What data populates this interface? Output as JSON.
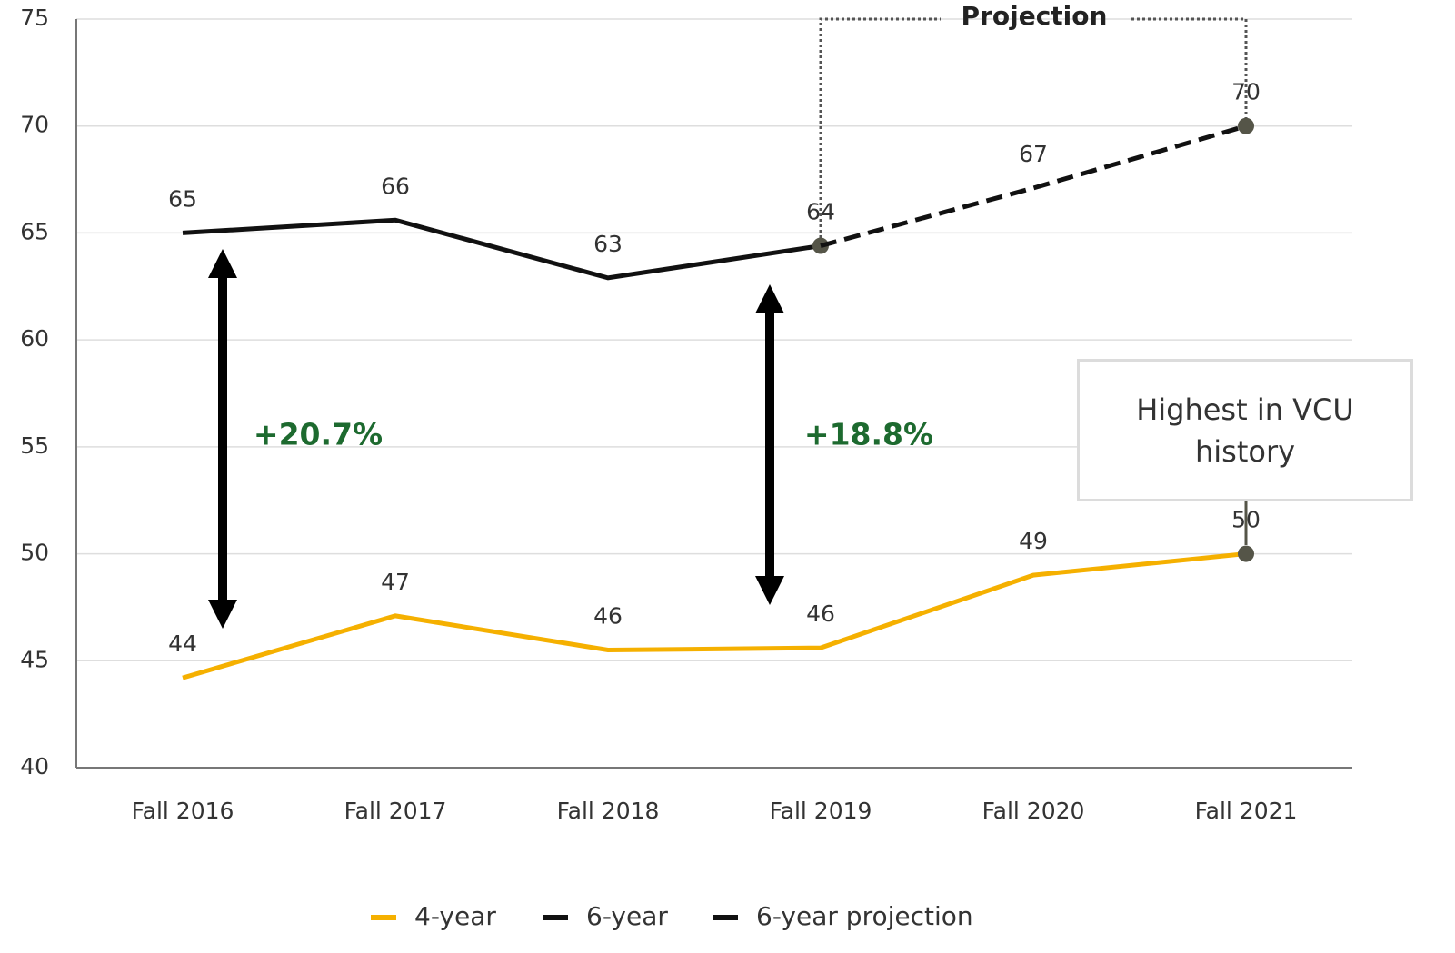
{
  "chart_data": {
    "type": "line",
    "categories": [
      "Fall 2016",
      "Fall 2017",
      "Fall 2018",
      "Fall 2019",
      "Fall 2020",
      "Fall 2021"
    ],
    "series": [
      {
        "name": "4-year",
        "color": "#f5b000",
        "style": "solid",
        "values": [
          44.2,
          47.1,
          45.5,
          45.6,
          49.0,
          50.0
        ],
        "value_labels": [
          "44",
          "47",
          "46",
          "46",
          "49",
          "50"
        ],
        "markers": [
          5
        ]
      },
      {
        "name": "6-year",
        "color": "#111111",
        "style": "solid",
        "values": [
          65.0,
          65.6,
          62.9,
          64.4,
          null,
          null
        ],
        "value_labels": [
          "65",
          "66",
          "63",
          "64",
          null,
          null
        ],
        "markers": [
          3
        ]
      },
      {
        "name": "6-year projection",
        "color": "#111111",
        "style": "dashed",
        "values": [
          null,
          null,
          null,
          64.4,
          67.1,
          70.0
        ],
        "value_labels": [
          null,
          null,
          null,
          null,
          "67",
          "70"
        ],
        "markers": [
          5
        ]
      }
    ],
    "ylim": [
      40,
      75
    ],
    "yticks": [
      40,
      45,
      50,
      55,
      60,
      65,
      70,
      75
    ],
    "grid": true,
    "legend": "bottom",
    "annotations": [
      "+20.7%",
      "+18.8%",
      "Projection",
      "Highest in VCU history"
    ]
  }
}
